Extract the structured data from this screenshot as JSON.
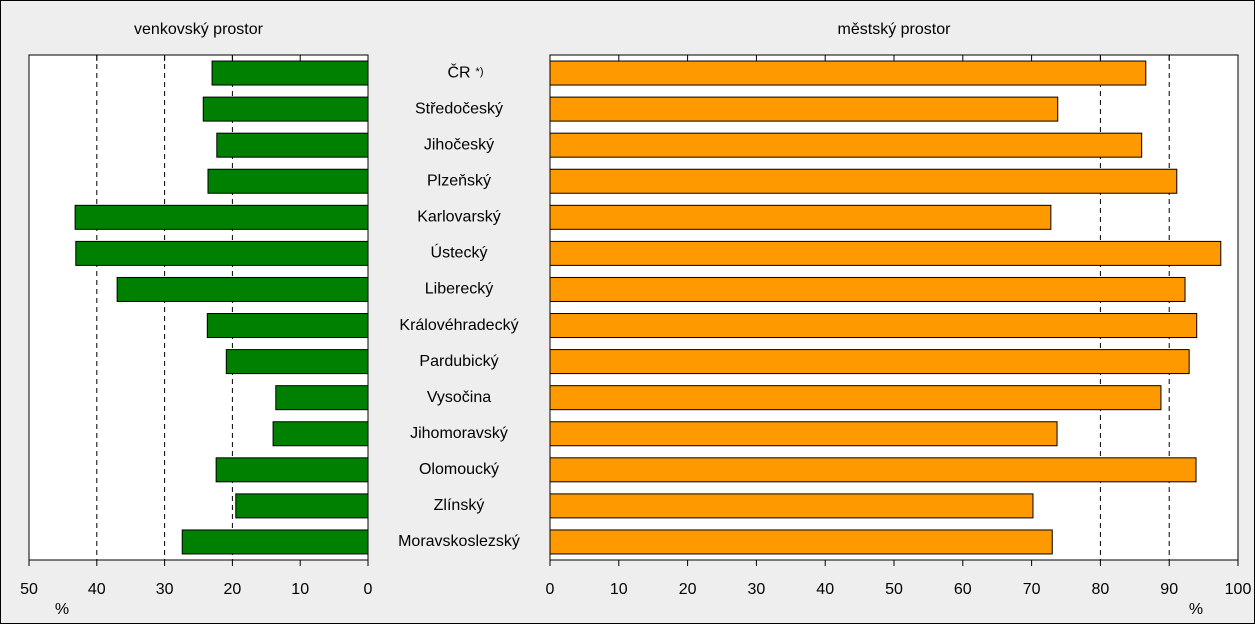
{
  "chart_data": [
    {
      "type": "barh",
      "title": "venkovský prostor",
      "axis_label": "%",
      "categories": [
        "ČR",
        "Středočeský",
        "Jihočeský",
        "Plzeňský",
        "Karlovarský",
        "Ústecký",
        "Liberecký",
        "Královéhradecký",
        "Pardubický",
        "Vysočina",
        "Jihomoravský",
        "Olomoucký",
        "Zlínský",
        "Moravskoslezský"
      ],
      "category_note": "*)",
      "values": [
        23.0,
        24.3,
        22.3,
        23.6,
        43.2,
        43.1,
        37.0,
        23.7,
        20.9,
        13.6,
        14.0,
        22.4,
        19.5,
        27.4
      ],
      "color": "#008000",
      "xlim": [
        50,
        0
      ],
      "xticks": [
        50,
        40,
        30,
        20,
        10,
        0
      ],
      "grid_lines": [
        40,
        30,
        20
      ]
    },
    {
      "type": "barh",
      "title": "městský prostor",
      "axis_label": "%",
      "values": [
        86.6,
        73.8,
        86.0,
        91.1,
        72.8,
        97.5,
        92.3,
        94.0,
        92.9,
        88.8,
        73.7,
        93.9,
        70.2,
        73.0
      ],
      "color": "#ff9900",
      "xlim": [
        0,
        100
      ],
      "xticks": [
        0,
        10,
        20,
        30,
        40,
        50,
        60,
        70,
        80,
        90,
        100
      ],
      "grid_lines": [
        80,
        90
      ]
    }
  ]
}
